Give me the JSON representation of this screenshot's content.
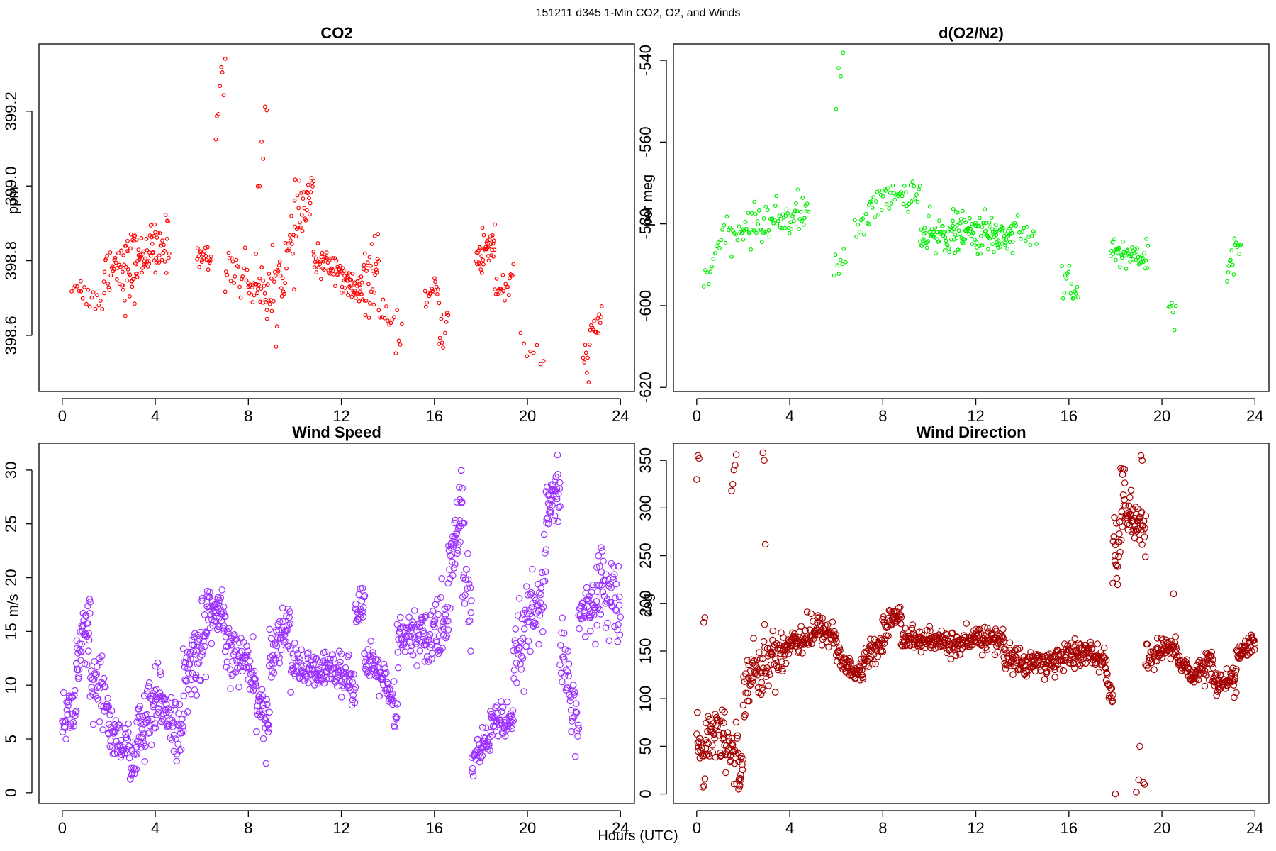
{
  "figure": {
    "suptitle": "151211   d345   1-Min CO2, O2, and Winds",
    "xlabel": "Hours (UTC)"
  },
  "chart_data": [
    {
      "id": "co2",
      "type": "scatter",
      "title": "CO2",
      "xlabel": "Hours (UTC)",
      "ylabel": "ppm",
      "color": "#ff0000",
      "marker": "small-open-circle",
      "xlim": [
        -1,
        24.6
      ],
      "ylim": [
        398.45,
        399.38
      ],
      "xticks": [
        0,
        4,
        8,
        12,
        16,
        20,
        24
      ],
      "yticks": [
        398.6,
        398.8,
        399.0,
        399.2
      ],
      "ytick_labels": [
        "398.6",
        "398.8",
        "399.0",
        "399.2"
      ],
      "segments": [
        [
          0.4,
          0.8,
          398.73,
          398.74,
          0.02,
          6
        ],
        [
          0.8,
          1.8,
          398.71,
          398.69,
          0.03,
          14
        ],
        [
          1.8,
          2.6,
          398.78,
          398.8,
          0.06,
          26
        ],
        [
          2.6,
          3.2,
          398.76,
          398.8,
          0.08,
          32
        ],
        [
          3.2,
          4.0,
          398.8,
          398.84,
          0.05,
          36
        ],
        [
          4.0,
          4.6,
          398.8,
          398.86,
          0.06,
          24
        ],
        [
          5.8,
          6.4,
          398.82,
          398.8,
          0.03,
          20
        ],
        [
          6.6,
          7.0,
          399.18,
          399.3,
          0.06,
          8
        ],
        [
          7.0,
          8.0,
          398.8,
          398.75,
          0.06,
          22
        ],
        [
          8.0,
          8.8,
          398.74,
          398.72,
          0.05,
          26
        ],
        [
          8.4,
          8.8,
          399.05,
          399.2,
          0.1,
          6
        ],
        [
          8.8,
          10.0,
          398.68,
          398.85,
          0.08,
          40
        ],
        [
          10.0,
          10.8,
          398.9,
          398.98,
          0.07,
          30
        ],
        [
          10.8,
          12.0,
          398.8,
          398.78,
          0.03,
          46
        ],
        [
          12.0,
          12.8,
          398.74,
          398.72,
          0.04,
          38
        ],
        [
          12.8,
          13.6,
          398.7,
          398.8,
          0.07,
          34
        ],
        [
          13.6,
          14.6,
          398.65,
          398.6,
          0.04,
          16
        ],
        [
          15.6,
          16.2,
          398.7,
          398.72,
          0.03,
          16
        ],
        [
          16.2,
          16.6,
          398.6,
          398.65,
          0.05,
          10
        ],
        [
          17.8,
          18.6,
          398.8,
          398.86,
          0.06,
          38
        ],
        [
          18.6,
          19.4,
          398.72,
          398.74,
          0.04,
          20
        ],
        [
          19.7,
          20.7,
          398.57,
          398.54,
          0.04,
          8
        ],
        [
          22.4,
          23.2,
          398.52,
          398.66,
          0.05,
          22
        ]
      ]
    },
    {
      "id": "o2",
      "type": "scatter",
      "title": "d(O2/N2)",
      "xlabel": "Hours (UTC)",
      "ylabel": "per meg",
      "color": "#00ee00",
      "marker": "small-open-circle",
      "xlim": [
        -1,
        24.6
      ],
      "ylim": [
        -621,
        -536
      ],
      "xticks": [
        0,
        4,
        8,
        12,
        16,
        20,
        24
      ],
      "yticks": [
        -600,
        -580,
        -560,
        -540,
        -620
      ],
      "ytick_labels": [
        "-600",
        "-580",
        "-560",
        "-540",
        "-620"
      ],
      "segments": [
        [
          0.3,
          0.8,
          -595,
          -588,
          3,
          8
        ],
        [
          0.8,
          2.0,
          -585,
          -582,
          3,
          20
        ],
        [
          2.0,
          4.8,
          -581,
          -577,
          4,
          70
        ],
        [
          5.9,
          6.4,
          -590,
          -589,
          3,
          8
        ],
        [
          6.0,
          6.3,
          -550,
          -545,
          8,
          4
        ],
        [
          6.8,
          7.4,
          -582,
          -578,
          3,
          10
        ],
        [
          7.4,
          9.6,
          -575,
          -572,
          3,
          44
        ],
        [
          9.6,
          11.0,
          -584,
          -582,
          4,
          50
        ],
        [
          11.0,
          13.6,
          -582,
          -583,
          4,
          110
        ],
        [
          13.6,
          14.6,
          -580,
          -584,
          3,
          16
        ],
        [
          15.7,
          16.4,
          -591,
          -597,
          4,
          16
        ],
        [
          17.8,
          19.4,
          -587,
          -588,
          3,
          50
        ],
        [
          20.3,
          20.6,
          -600,
          -604,
          3,
          6
        ],
        [
          22.8,
          23.4,
          -590,
          -585,
          3,
          16
        ]
      ]
    },
    {
      "id": "wind_speed",
      "type": "scatter",
      "title": "Wind Speed",
      "xlabel": "Hours (UTC)",
      "ylabel": "m/s",
      "color": "#9b30ff",
      "marker": "open-circle",
      "xlim": [
        -1,
        24.6
      ],
      "ylim": [
        -1,
        32.5
      ],
      "xticks": [
        0,
        4,
        8,
        12,
        16,
        20,
        24
      ],
      "yticks": [
        0,
        5,
        10,
        15,
        20,
        25,
        30
      ],
      "ytick_labels": [
        "0",
        "5",
        "10",
        "15",
        "20",
        "25",
        "30"
      ],
      "segments": [
        [
          0.0,
          0.6,
          7,
          8,
          2,
          30
        ],
        [
          0.6,
          1.2,
          12,
          15,
          3,
          40
        ],
        [
          1.2,
          2.0,
          10,
          8,
          3,
          40
        ],
        [
          2.0,
          3.2,
          6,
          3,
          2,
          60
        ],
        [
          3.2,
          4.4,
          5,
          9,
          3,
          70
        ],
        [
          4.4,
          5.2,
          8,
          5,
          2,
          40
        ],
        [
          5.2,
          6.2,
          10,
          15,
          3,
          60
        ],
        [
          6.2,
          7.0,
          17,
          16,
          2,
          50
        ],
        [
          7.0,
          8.2,
          13,
          12,
          2,
          60
        ],
        [
          8.2,
          8.9,
          10,
          6,
          2,
          40
        ],
        [
          8.9,
          9.8,
          13,
          16,
          2,
          50
        ],
        [
          9.8,
          11.0,
          12,
          11,
          1.5,
          60
        ],
        [
          11.0,
          12.0,
          11,
          12,
          1.5,
          50
        ],
        [
          12.0,
          12.6,
          11,
          10,
          1.5,
          30
        ],
        [
          12.6,
          13.0,
          17,
          18,
          1.5,
          20
        ],
        [
          13.0,
          13.8,
          12,
          11,
          1.5,
          40
        ],
        [
          13.8,
          14.4,
          10,
          7,
          2,
          30
        ],
        [
          14.4,
          15.6,
          14,
          15,
          2,
          60
        ],
        [
          15.6,
          16.6,
          14,
          16,
          3,
          50
        ],
        [
          16.6,
          17.2,
          20,
          27,
          3,
          40
        ],
        [
          17.2,
          17.6,
          22,
          16,
          4,
          20
        ],
        [
          17.6,
          18.4,
          3,
          5,
          1.5,
          40
        ],
        [
          18.4,
          19.4,
          7,
          6,
          1.5,
          50
        ],
        [
          19.4,
          20.2,
          12,
          17,
          3,
          40
        ],
        [
          20.2,
          20.8,
          15,
          20,
          3,
          30
        ],
        [
          20.8,
          21.4,
          26,
          28,
          2,
          40
        ],
        [
          21.4,
          22.2,
          14,
          6,
          4,
          40
        ],
        [
          22.2,
          23.0,
          16,
          18,
          2,
          40
        ],
        [
          23.0,
          24.0,
          20,
          17,
          3,
          50
        ]
      ]
    },
    {
      "id": "wind_direction",
      "type": "scatter",
      "title": "Wind Direction",
      "xlabel": "Hours (UTC)",
      "ylabel": "deg",
      "color": "#a50000",
      "marker": "open-circle",
      "xlim": [
        -1,
        24.6
      ],
      "ylim": [
        -10,
        368
      ],
      "xticks": [
        0,
        4,
        8,
        12,
        16,
        20,
        24
      ],
      "yticks": [
        0,
        50,
        100,
        150,
        200,
        250,
        300,
        350
      ],
      "ytick_labels": [
        "0",
        "50",
        "100",
        "150",
        "200",
        "250",
        "300",
        "350"
      ],
      "segments": [
        [
          0.0,
          0.4,
          60,
          40,
          25,
          20
        ],
        [
          0.4,
          1.2,
          60,
          70,
          25,
          40
        ],
        [
          1.2,
          2.0,
          50,
          30,
          25,
          40
        ],
        [
          2.0,
          3.2,
          120,
          140,
          25,
          60
        ],
        [
          3.2,
          4.0,
          145,
          155,
          20,
          40
        ],
        [
          4.0,
          5.2,
          160,
          170,
          15,
          60
        ],
        [
          5.2,
          6.0,
          175,
          165,
          12,
          40
        ],
        [
          6.0,
          6.6,
          145,
          135,
          12,
          30
        ],
        [
          6.6,
          7.2,
          125,
          130,
          10,
          30
        ],
        [
          7.2,
          8.0,
          140,
          160,
          10,
          40
        ],
        [
          8.0,
          8.8,
          175,
          190,
          10,
          40
        ],
        [
          8.8,
          10.0,
          165,
          160,
          10,
          60
        ],
        [
          10.0,
          11.2,
          160,
          158,
          10,
          60
        ],
        [
          11.2,
          12.0,
          155,
          160,
          10,
          40
        ],
        [
          12.0,
          13.2,
          165,
          160,
          12,
          60
        ],
        [
          13.2,
          14.2,
          145,
          135,
          12,
          50
        ],
        [
          14.2,
          15.4,
          140,
          135,
          12,
          60
        ],
        [
          15.4,
          16.4,
          145,
          145,
          12,
          50
        ],
        [
          16.4,
          17.6,
          150,
          140,
          10,
          60
        ],
        [
          17.6,
          17.9,
          120,
          100,
          12,
          15
        ],
        [
          17.9,
          18.4,
          230,
          320,
          40,
          30
        ],
        [
          18.4,
          19.3,
          300,
          270,
          20,
          50
        ],
        [
          19.3,
          19.8,
          140,
          150,
          15,
          20
        ],
        [
          19.8,
          20.6,
          150,
          155,
          10,
          40
        ],
        [
          20.6,
          21.4,
          145,
          120,
          10,
          40
        ],
        [
          21.4,
          22.2,
          130,
          140,
          12,
          40
        ],
        [
          22.2,
          23.2,
          115,
          120,
          10,
          50
        ],
        [
          23.2,
          24.0,
          145,
          160,
          10,
          40
        ]
      ],
      "extra_points": [
        [
          0.0,
          330
        ],
        [
          0.05,
          355
        ],
        [
          0.1,
          352
        ],
        [
          1.5,
          318
        ],
        [
          1.55,
          325
        ],
        [
          1.6,
          340
        ],
        [
          1.65,
          345
        ],
        [
          1.7,
          356
        ],
        [
          2.85,
          358
        ],
        [
          2.9,
          350
        ],
        [
          2.95,
          262
        ],
        [
          0.3,
          180
        ],
        [
          0.35,
          185
        ],
        [
          1.8,
          5
        ],
        [
          1.85,
          8
        ],
        [
          1.9,
          15
        ],
        [
          19.0,
          15
        ],
        [
          19.05,
          50
        ],
        [
          19.1,
          355
        ],
        [
          19.15,
          350
        ],
        [
          19.2,
          12
        ],
        [
          19.25,
          10
        ],
        [
          18.0,
          0
        ],
        [
          18.9,
          2
        ],
        [
          20.5,
          210
        ]
      ]
    }
  ]
}
